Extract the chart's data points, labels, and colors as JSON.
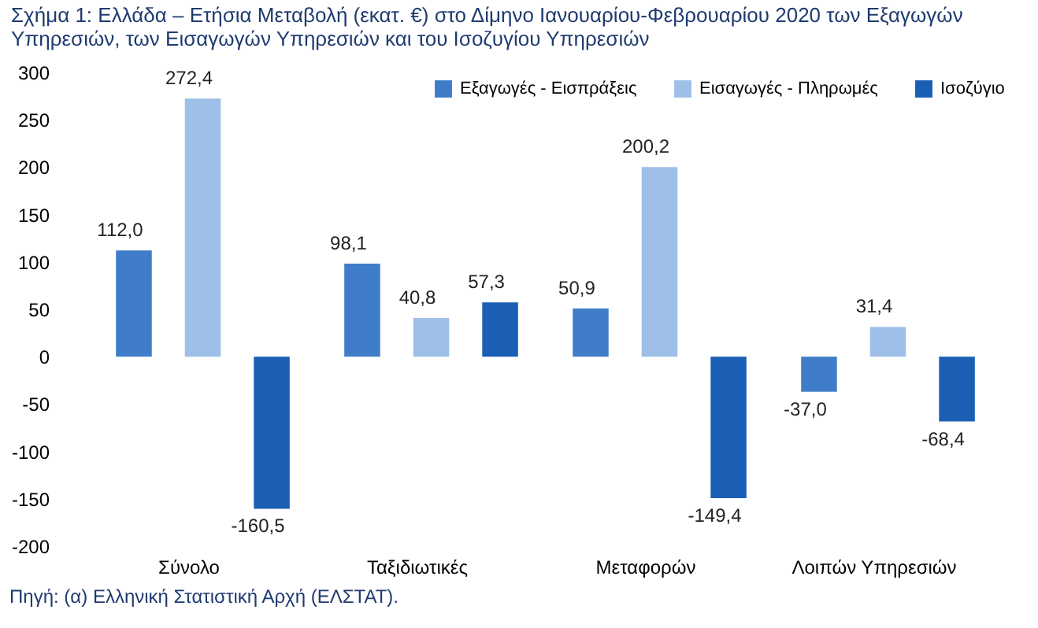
{
  "chart_data": {
    "type": "bar",
    "title": "Σχήμα 1: Ελλάδα – Ετήσια Μεταβολή (εκατ. €) στο Δίμηνο Ιανουαρίου-Φεβρουαρίου 2020 των Εξαγωγών Υπηρεσιών, των Εισαγωγών Υπηρεσιών και του Ισοζυγίου Υπηρεσιών",
    "categories": [
      "Σύνολο",
      "Ταξιδιωτικές",
      "Μεταφορών",
      "Λοιπών Υπηρεσιών"
    ],
    "series": [
      {
        "name": "Εξαγωγές - Εισπράξεις",
        "color": "#3f7dc9",
        "values": [
          112.0,
          98.1,
          50.9,
          -37.0
        ],
        "value_labels": [
          "112,0",
          "98,1",
          "50,9",
          "-37,0"
        ]
      },
      {
        "name": "Εισαγωγές - Πληρωμές",
        "color": "#9dbfe8",
        "values": [
          272.4,
          40.8,
          200.2,
          31.4
        ],
        "value_labels": [
          "272,4",
          "40,8",
          "200,2",
          "31,4"
        ]
      },
      {
        "name": "Ισοζύγιο",
        "color": "#1a5fb4",
        "values": [
          -160.5,
          57.3,
          -149.4,
          -68.4
        ],
        "value_labels": [
          "-160,5",
          "57,3",
          "-149,4",
          "-68,4"
        ]
      }
    ],
    "ylim": [
      -200,
      300
    ],
    "yticks": [
      -200,
      -150,
      -100,
      -50,
      0,
      50,
      100,
      150,
      200,
      250,
      300
    ],
    "grid": false,
    "legend": "top right",
    "annotations": [
      "Πηγή: (α) Ελληνική Στατιστική Αρχή (ΕΛΣΤΑΤ)."
    ]
  }
}
